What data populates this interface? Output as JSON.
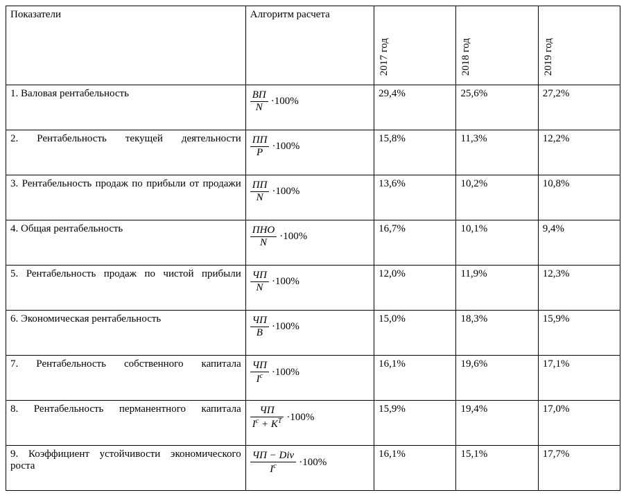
{
  "table": {
    "header": {
      "indicator_label": "Показатели",
      "formula_label": "Алгоритм расчета",
      "years": [
        "2017 год",
        "2018 год",
        "2019 год"
      ]
    },
    "multiply_suffix": "·100%",
    "rows": [
      {
        "label": "1. Валовая рентабельность",
        "numerator": "ВП",
        "denominator": "N",
        "den_has_bar": false,
        "den_super": "",
        "values": [
          "29,4%",
          "25,6%",
          "27,2%"
        ],
        "justify": false
      },
      {
        "label": "2. Рентабельность текущей деятельности",
        "numerator": "ПП",
        "denominator": "P",
        "den_has_bar": false,
        "den_super": "",
        "values": [
          "15,8%",
          "11,3%",
          "12,2%"
        ],
        "justify": true
      },
      {
        "label": "3. Рентабельность продаж по прибыли от продажи",
        "numerator": "ПП",
        "denominator": "N",
        "den_has_bar": false,
        "den_super": "",
        "values": [
          "13,6%",
          "10,2%",
          "10,8%"
        ],
        "justify": true
      },
      {
        "label": "4. Общая рентабельность",
        "numerator": "ПНО",
        "denominator": "N",
        "den_has_bar": false,
        "den_super": "",
        "values": [
          "16,7%",
          "10,1%",
          "9,4%"
        ],
        "justify": false
      },
      {
        "label": "5. Рентабельность продаж по чистой прибыли",
        "numerator": "ЧП",
        "denominator": "N",
        "den_has_bar": false,
        "den_super": "",
        "values": [
          "12,0%",
          "11,9%",
          "12,3%"
        ],
        "justify": true
      },
      {
        "label": "6. Экономическая рентабельность",
        "numerator": "ЧП",
        "denominator": "B",
        "den_has_bar": true,
        "den_super": "",
        "values": [
          "15,0%",
          "18,3%",
          "15,9%"
        ],
        "justify": false
      },
      {
        "label": "7. Рентабельность собственного капитала",
        "numerator": "ЧП",
        "denominator": "I",
        "den_has_bar": false,
        "den_super": "c",
        "values": [
          "16,1%",
          "19,6%",
          "17,1%"
        ],
        "justify": true
      },
      {
        "label": "8. Рентабельность перманентного капитала",
        "numerator": "ЧП",
        "denominator": "I<sup>c</sup> + K<sup>T</sup>",
        "den_is_html": true,
        "den_has_bar": false,
        "den_super": "",
        "values": [
          "15,9%",
          "19,4%",
          "17,0%"
        ],
        "justify": true
      },
      {
        "label": "9. Коэффициент устойчивости экономического роста",
        "numerator": "ЧП − Div",
        "denominator": "I",
        "den_has_bar": false,
        "den_super": "c",
        "values": [
          "16,1%",
          "15,1%",
          "17,7%"
        ],
        "justify": true
      }
    ]
  }
}
